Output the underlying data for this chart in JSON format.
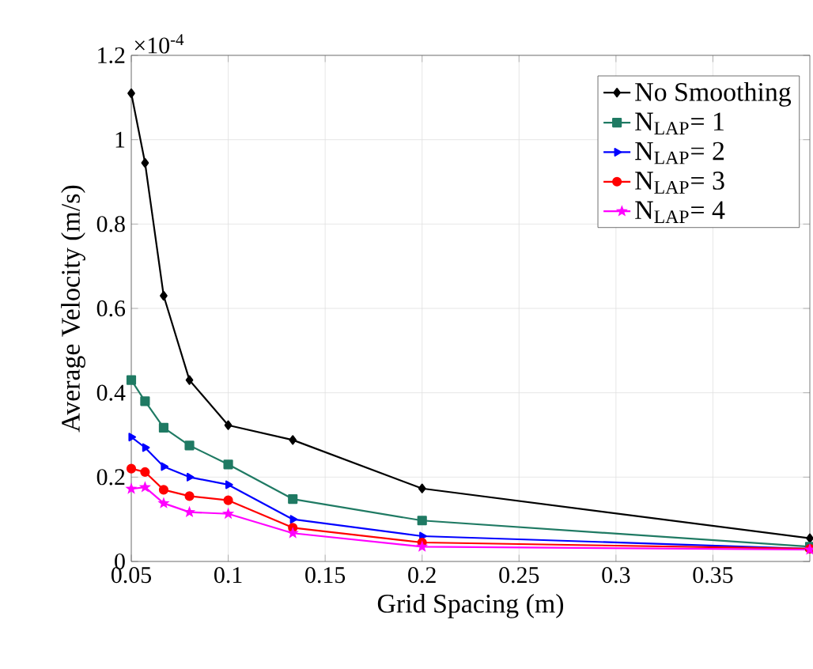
{
  "chart_data": {
    "type": "line",
    "xlabel": "Grid Spacing (m)",
    "ylabel": "Average Velocity (m/s)",
    "annotations": [
      "×10$^{-4}$"
    ],
    "x": [
      0.05,
      0.0571,
      0.0667,
      0.08,
      0.1,
      0.1333,
      0.2,
      0.4
    ],
    "series": [
      {
        "name": "No Smoothing",
        "color": "#000000",
        "marker": "diamond",
        "values": [
          1.11,
          0.945,
          0.63,
          0.43,
          0.323,
          0.288,
          0.173,
          0.055
        ]
      },
      {
        "name": "N$_{LAP}$= 1",
        "color": "#1f7a63",
        "marker": "square",
        "values": [
          0.43,
          0.38,
          0.317,
          0.275,
          0.23,
          0.148,
          0.097,
          0.035
        ]
      },
      {
        "name": "N$_{LAP}$= 2",
        "color": "#0000ff",
        "marker": "triangle",
        "values": [
          0.295,
          0.27,
          0.225,
          0.2,
          0.182,
          0.1,
          0.06,
          0.03
        ]
      },
      {
        "name": "N$_{LAP}$= 3",
        "color": "#ff0000",
        "marker": "circle",
        "values": [
          0.22,
          0.212,
          0.17,
          0.155,
          0.145,
          0.08,
          0.045,
          0.03
        ]
      },
      {
        "name": "N$_{LAP}$= 4",
        "color": "#ff00ff",
        "marker": "star",
        "values": [
          0.172,
          0.176,
          0.138,
          0.117,
          0.113,
          0.067,
          0.035,
          0.028
        ]
      }
    ],
    "xlim": [
      0.05,
      0.4
    ],
    "xticks": [
      0.05,
      0.1,
      0.15,
      0.2,
      0.25,
      0.3,
      0.35
    ],
    "ylim": [
      0,
      1.2
    ],
    "yticks": [
      0,
      0.2,
      0.4,
      0.6,
      0.8,
      1,
      1.2
    ],
    "grid": true,
    "legend": "top right",
    "line_style": "solid"
  }
}
